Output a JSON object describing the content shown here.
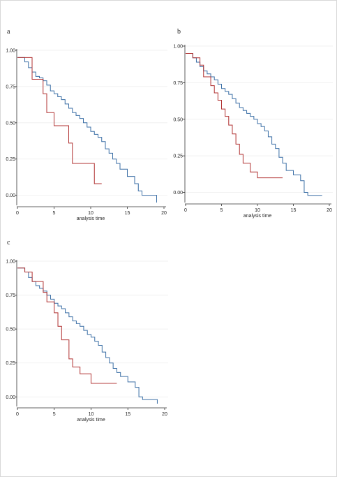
{
  "panels": [
    {
      "letter": "a"
    },
    {
      "letter": "b"
    },
    {
      "letter": "c"
    }
  ],
  "chart_data": [
    {
      "type": "line",
      "panel": "a",
      "xlabel": "analysis time",
      "ylabel": "",
      "xlim": [
        0,
        20
      ],
      "ylim": [
        -0.05,
        1.0
      ],
      "xticks": [
        0,
        5,
        10,
        15,
        20
      ],
      "yticks": [
        "0.00",
        "0.25",
        "0.50",
        "0.75",
        "1.00"
      ],
      "grid": "horizontal",
      "series": [
        {
          "color": "#3a6ea5",
          "step": true,
          "x": [
            0,
            1.0,
            1.5,
            2.0,
            2.5,
            3.0,
            3.5,
            4.0,
            4.5,
            5.0,
            5.5,
            6.0,
            6.5,
            7.0,
            7.5,
            8.0,
            8.5,
            9.0,
            9.5,
            10.0,
            10.5,
            11.0,
            11.5,
            12.0,
            12.5,
            13.0,
            13.5,
            14.0,
            15.0,
            16.0,
            16.5,
            17.0,
            18.0,
            19.0
          ],
          "y": [
            0.95,
            0.92,
            0.88,
            0.85,
            0.82,
            0.81,
            0.79,
            0.76,
            0.72,
            0.7,
            0.68,
            0.66,
            0.63,
            0.6,
            0.57,
            0.55,
            0.53,
            0.5,
            0.47,
            0.44,
            0.42,
            0.4,
            0.37,
            0.32,
            0.29,
            0.25,
            0.22,
            0.18,
            0.13,
            0.08,
            0.03,
            0.0,
            0.0,
            -0.05
          ]
        },
        {
          "color": "#b03030",
          "step": true,
          "x": [
            0,
            1.5,
            2.0,
            3.5,
            4.0,
            5.0,
            7.0,
            7.5,
            10.5,
            11.5
          ],
          "y": [
            0.95,
            0.95,
            0.8,
            0.7,
            0.57,
            0.48,
            0.36,
            0.22,
            0.08,
            0.08
          ]
        }
      ]
    },
    {
      "type": "line",
      "panel": "b",
      "xlabel": "analysis time",
      "ylabel": "",
      "xlim": [
        0,
        20
      ],
      "ylim": [
        -0.05,
        1.0
      ],
      "xticks": [
        0,
        5,
        10,
        15,
        20
      ],
      "yticks": [
        "0.00",
        "0.25",
        "0.50",
        "0.75",
        "1.00"
      ],
      "grid": "horizontal",
      "series": [
        {
          "color": "#3a6ea5",
          "step": true,
          "x": [
            0,
            1.0,
            1.5,
            2.0,
            2.5,
            3.0,
            3.5,
            4.0,
            4.5,
            5.0,
            5.5,
            6.0,
            6.5,
            7.0,
            7.5,
            8.0,
            8.5,
            9.0,
            9.5,
            10.0,
            10.5,
            11.0,
            11.5,
            12.0,
            12.5,
            13.0,
            13.5,
            14.0,
            15.0,
            16.0,
            16.5,
            17.0,
            18.0,
            19.0
          ],
          "y": [
            0.95,
            0.92,
            0.89,
            0.86,
            0.83,
            0.81,
            0.79,
            0.77,
            0.74,
            0.71,
            0.69,
            0.67,
            0.64,
            0.61,
            0.58,
            0.56,
            0.54,
            0.52,
            0.5,
            0.47,
            0.45,
            0.42,
            0.38,
            0.33,
            0.3,
            0.24,
            0.2,
            0.15,
            0.12,
            0.08,
            0.0,
            -0.02,
            -0.02,
            -0.02
          ]
        },
        {
          "color": "#b03030",
          "step": true,
          "x": [
            0,
            1.0,
            2.0,
            2.5,
            3.5,
            4.0,
            4.5,
            5.0,
            5.5,
            6.0,
            6.5,
            7.0,
            7.5,
            8.0,
            9.0,
            10.0,
            13.5
          ],
          "y": [
            0.95,
            0.92,
            0.87,
            0.79,
            0.73,
            0.68,
            0.63,
            0.57,
            0.52,
            0.46,
            0.4,
            0.33,
            0.26,
            0.2,
            0.14,
            0.1,
            0.1
          ]
        }
      ]
    },
    {
      "type": "line",
      "panel": "c",
      "xlabel": "analysis time",
      "ylabel": "",
      "xlim": [
        0,
        20
      ],
      "ylim": [
        -0.05,
        1.0
      ],
      "xticks": [
        0,
        5,
        10,
        15,
        20
      ],
      "yticks": [
        "0.00",
        "0.25",
        "0.50",
        "0.75",
        "1.00"
      ],
      "grid": "horizontal",
      "series": [
        {
          "color": "#3a6ea5",
          "step": true,
          "x": [
            0,
            1.0,
            1.5,
            2.0,
            2.5,
            3.0,
            3.5,
            4.0,
            4.5,
            5.0,
            5.5,
            6.0,
            6.5,
            7.0,
            7.5,
            8.0,
            8.5,
            9.0,
            9.5,
            10.0,
            10.5,
            11.0,
            11.5,
            12.0,
            12.5,
            13.0,
            13.5,
            14.0,
            15.0,
            16.0,
            16.5,
            17.0,
            18.0,
            19.0
          ],
          "y": [
            0.95,
            0.92,
            0.88,
            0.85,
            0.82,
            0.8,
            0.78,
            0.75,
            0.72,
            0.69,
            0.67,
            0.65,
            0.62,
            0.59,
            0.56,
            0.54,
            0.52,
            0.49,
            0.46,
            0.44,
            0.41,
            0.38,
            0.33,
            0.29,
            0.25,
            0.21,
            0.18,
            0.15,
            0.11,
            0.07,
            0.0,
            -0.02,
            -0.02,
            -0.05
          ]
        },
        {
          "color": "#b03030",
          "step": true,
          "x": [
            0,
            1.0,
            2.0,
            3.5,
            4.0,
            5.0,
            5.5,
            6.0,
            7.0,
            7.5,
            8.5,
            10.0,
            13.5
          ],
          "y": [
            0.95,
            0.92,
            0.85,
            0.77,
            0.7,
            0.62,
            0.52,
            0.42,
            0.28,
            0.22,
            0.17,
            0.1,
            0.1
          ]
        }
      ]
    }
  ]
}
